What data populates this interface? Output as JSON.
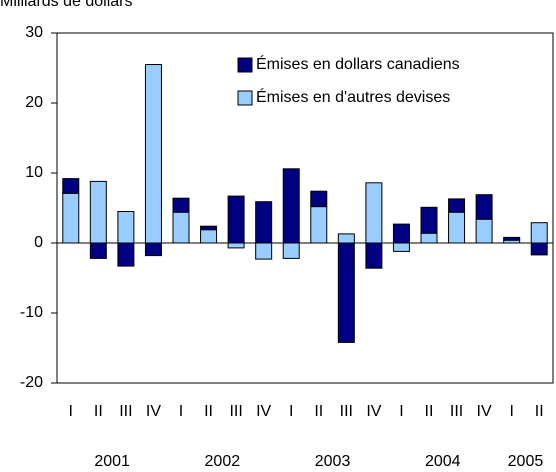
{
  "chart_data": {
    "type": "bar",
    "stacked": true,
    "ylabel": "Milliards de dollars",
    "categories": [
      "I",
      "II",
      "III",
      "IV",
      "I",
      "II",
      "III",
      "IV",
      "I",
      "II",
      "III",
      "IV",
      "I",
      "II",
      "III",
      "IV",
      "I",
      "II"
    ],
    "groups": [
      "2001",
      "2002",
      "2003",
      "2004",
      "2005"
    ],
    "series": [
      {
        "name": "Émises en d'autres devises",
        "color": "#99ccff",
        "values": [
          7.1,
          8.8,
          4.5,
          25.5,
          4.4,
          1.9,
          -0.7,
          -2.3,
          -2.2,
          5.2,
          1.3,
          8.6,
          -1.2,
          1.4,
          4.4,
          3.4,
          0.4,
          2.9
        ]
      },
      {
        "name": "Émises en dollars canadiens",
        "color": "#000080",
        "values": [
          2.1,
          -2.2,
          -3.3,
          -1.8,
          2.0,
          0.5,
          6.7,
          5.9,
          10.6,
          2.2,
          -14.2,
          -3.6,
          2.7,
          3.7,
          1.9,
          3.5,
          0.4,
          -1.7
        ]
      }
    ],
    "legend_order": [
      1,
      0
    ],
    "ylim": [
      -20,
      30
    ],
    "yticks": [
      -20,
      -10,
      0,
      10,
      20,
      30
    ]
  }
}
